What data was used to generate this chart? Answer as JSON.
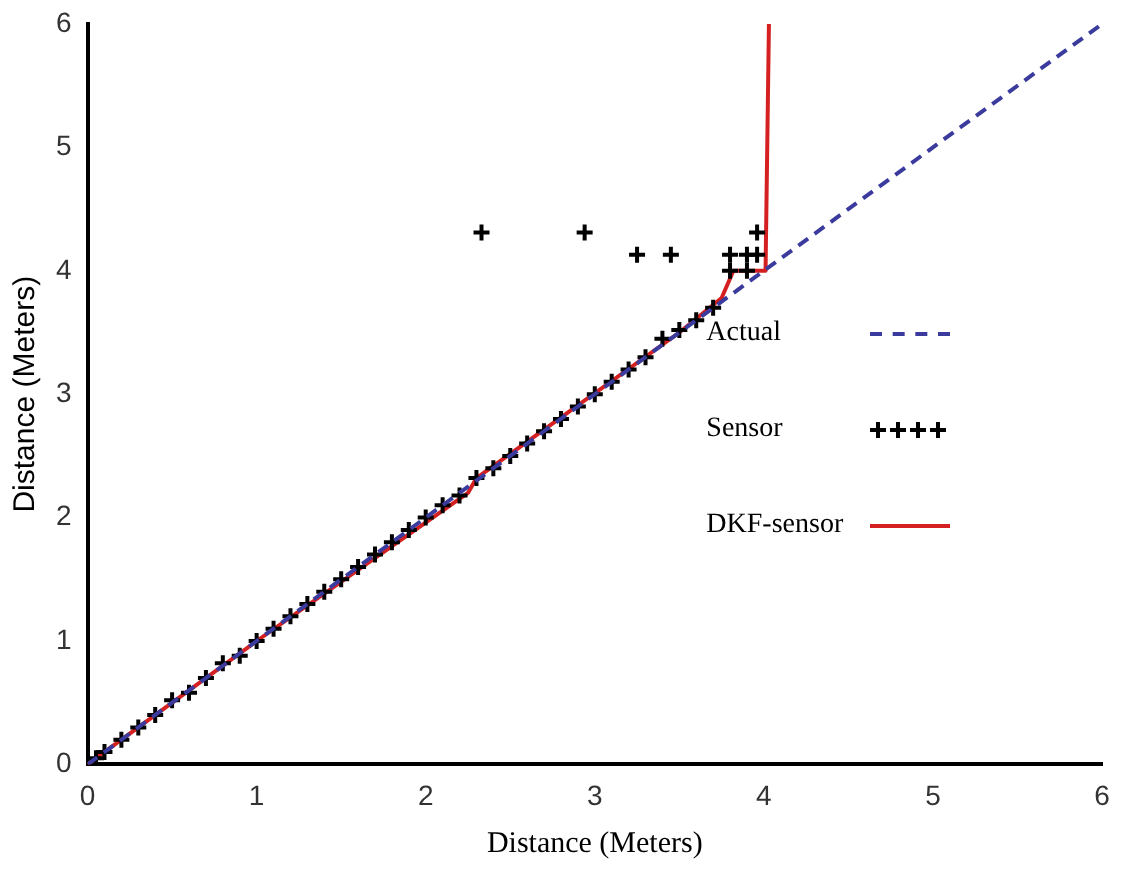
{
  "chart_data": {
    "type": "line",
    "xlabel": "Distance (Meters)",
    "ylabel": "Distance (Meters)",
    "xlim": [
      0,
      6
    ],
    "ylim": [
      0,
      6
    ],
    "xticks": [
      0,
      1,
      2,
      3,
      4,
      5,
      6
    ],
    "yticks": [
      0,
      1,
      2,
      3,
      4,
      5,
      6
    ],
    "grid": false,
    "legend": "right",
    "series": [
      {
        "name": "Actual",
        "color": "#3b3b9e",
        "line_style": "dashed",
        "marker": "none",
        "x": [
          0,
          6
        ],
        "values": [
          0,
          6
        ]
      },
      {
        "name": "Sensor",
        "type": "scatter",
        "color": "#000000",
        "marker": "cross",
        "x": [
          0.05,
          0.1,
          0.2,
          0.3,
          0.4,
          0.5,
          0.6,
          0.7,
          0.8,
          0.9,
          1.0,
          1.1,
          1.2,
          1.3,
          1.4,
          1.5,
          1.6,
          1.7,
          1.8,
          1.9,
          2.0,
          2.1,
          2.2,
          2.3,
          2.4,
          2.5,
          2.6,
          2.7,
          2.8,
          2.9,
          3.0,
          3.1,
          3.2,
          3.3,
          3.4,
          3.5,
          3.6,
          3.7,
          2.33,
          2.94,
          3.25,
          3.45,
          3.8,
          3.8,
          3.9,
          3.9,
          3.96,
          3.96
        ],
        "values": [
          0.05,
          0.1,
          0.2,
          0.3,
          0.4,
          0.52,
          0.58,
          0.7,
          0.82,
          0.88,
          1.0,
          1.1,
          1.2,
          1.3,
          1.4,
          1.5,
          1.6,
          1.7,
          1.8,
          1.9,
          2.0,
          2.1,
          2.18,
          2.32,
          2.4,
          2.5,
          2.6,
          2.7,
          2.8,
          2.9,
          3.0,
          3.1,
          3.2,
          3.3,
          3.45,
          3.52,
          3.6,
          3.7,
          4.31,
          4.31,
          4.13,
          4.13,
          4.13,
          4.0,
          4.13,
          4.0,
          4.13,
          4.31
        ]
      },
      {
        "name": "DKF-sensor",
        "color": "#d42020",
        "line_style": "solid",
        "marker": "none",
        "x": [
          0,
          1,
          2.25,
          2.3,
          3.5,
          3.75,
          3.82,
          4.01,
          4.03
        ],
        "values": [
          0,
          1,
          2.2,
          2.32,
          3.5,
          3.78,
          4.0,
          4.0,
          6.0
        ]
      }
    ]
  }
}
